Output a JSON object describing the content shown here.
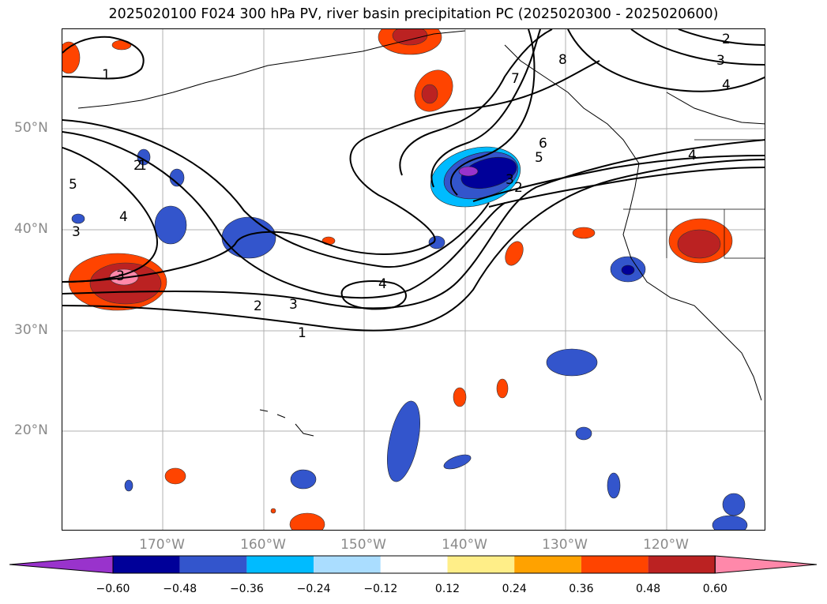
{
  "title": "2025020100 F024 300 hPa PV, river basin precipitation PC (2025020300 - 2025020600)",
  "lat_labels": [
    "50°N",
    "40°N",
    "30°N",
    "20°N"
  ],
  "lon_labels": [
    "170°W",
    "160°W",
    "150°W",
    "140°W",
    "130°W",
    "120°W"
  ],
  "contour_labels": [
    "1",
    "2",
    "3",
    "4",
    "5",
    "6",
    "7",
    "8",
    "1",
    "2",
    "3",
    "4",
    "5",
    "3",
    "2",
    "1",
    "3",
    "4",
    "4",
    "3",
    "2"
  ],
  "colorbar": {
    "ticks": [
      "−0.60",
      "−0.48",
      "−0.36",
      "−0.24",
      "−0.12",
      "0.12",
      "0.24",
      "0.36",
      "0.48",
      "0.60"
    ],
    "colors": [
      "#9933cc",
      "#000099",
      "#3355cc",
      "#00bbff",
      "#aaddff",
      "#ffffff",
      "#ffee88",
      "#ffa200",
      "#ff4400",
      "#bb2222",
      "#ff88aa"
    ]
  }
}
